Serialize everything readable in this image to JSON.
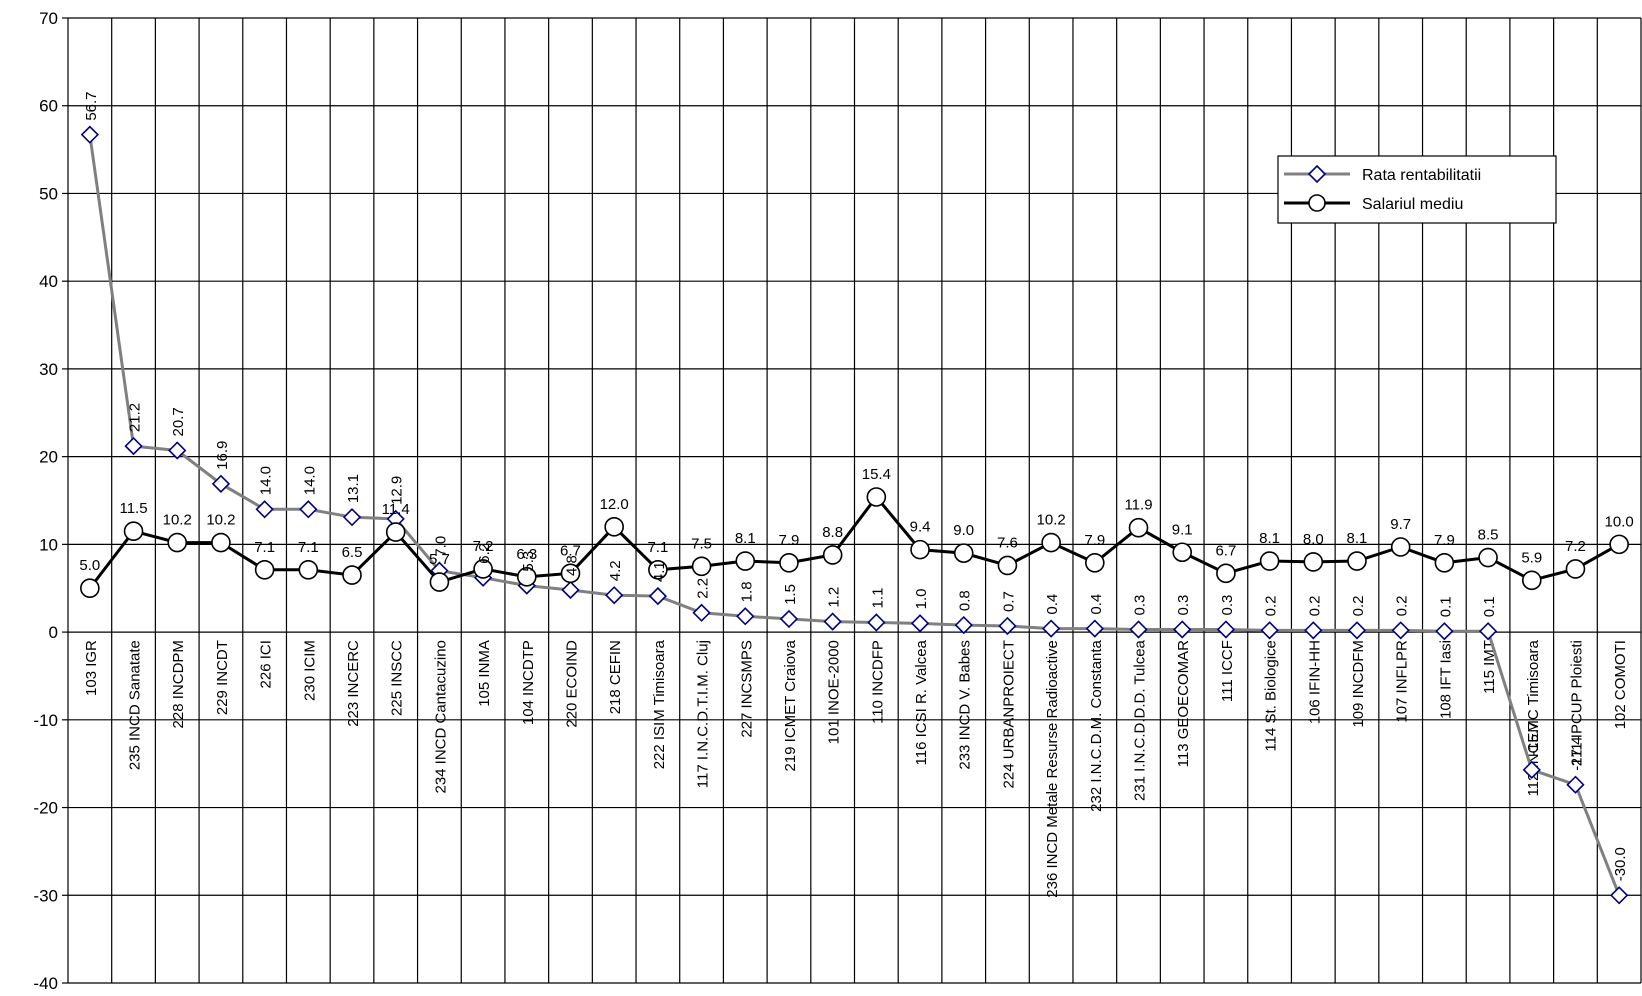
{
  "chart_data": {
    "type": "line",
    "ylim": [
      -40,
      70
    ],
    "y_ticks": [
      70,
      60,
      50,
      40,
      30,
      20,
      10,
      0,
      -10,
      -20,
      -30,
      -40
    ],
    "grid": true,
    "legend": "top-right",
    "categories": [
      "103 IGR",
      "235 INCD Sanatate",
      "228 INCDPM",
      "229 INCDT",
      "226 ICI",
      "230 ICIM",
      "223 INCERC",
      "225 INSCC",
      "234 INCD Cantacuzino",
      "105 INMA",
      "104 INCDTP",
      "220 ECOIND",
      "218 CEFIN",
      "222 ISIM Timisoara",
      "117 I.N.C.D.T.I.M. Cluj",
      "227 INCSMPS",
      "219 ICMET Craiova",
      "101 INOE-2000",
      "110 INCDFP",
      "116 ICSI R. Valcea",
      "233 INCD V. Babes",
      "224 URBANPROIECT",
      "236 INCD Metale Resurse Radioactive",
      "232 I.N.C.D.M. Constanta",
      "231 I.N.C.D.D.D. Tulcea",
      "113 GEOECOMAR",
      "111 ICCF",
      "114 St. Biologice",
      "106 IFIN-HH",
      "109 INCDFM",
      "107 INFLPR",
      "108 IFT Iasi",
      "115 IMT",
      "112 INCEMC Timisoara",
      "211 IPCUP Ploiesti",
      "102 COMOTI"
    ],
    "series": [
      {
        "name": "Rata rentabilitatii",
        "color": "#808080",
        "marker": "diamond",
        "marker_color": "#000080",
        "values": [
          56.7,
          21.2,
          20.7,
          16.9,
          14.0,
          14.0,
          13.1,
          12.9,
          7.0,
          6.2,
          5.3,
          4.8,
          4.2,
          4.1,
          2.2,
          1.8,
          1.5,
          1.2,
          1.1,
          1.0,
          0.8,
          0.7,
          0.4,
          0.4,
          0.3,
          0.3,
          0.3,
          0.2,
          0.2,
          0.2,
          0.2,
          0.1,
          0.1,
          -15.7,
          -17.4,
          -30.0
        ],
        "labels": [
          "56.7",
          "21.2",
          "20.7",
          "16.9",
          "14.0",
          "14.0",
          "13.1",
          "12.9",
          "7.0",
          "6.2",
          "5.3",
          "4.8",
          "4.2",
          "4.1",
          "2.2",
          "1.8",
          "1.5",
          "1.2",
          "1.1",
          "1.0",
          "0.8",
          "0.7",
          "0.4",
          "0.4",
          "0.3",
          "0.3",
          "0.3",
          "0.2",
          "0.2",
          "0.2",
          "0.2",
          "0.1",
          "0.1",
          "-15.7",
          "-17.4",
          "-30.0"
        ]
      },
      {
        "name": "Salariul mediu",
        "color": "#000000",
        "marker": "circle",
        "marker_color": "#000000",
        "values": [
          5.0,
          11.5,
          10.2,
          10.2,
          7.1,
          7.1,
          6.5,
          11.4,
          5.7,
          7.2,
          6.3,
          6.7,
          12.0,
          7.1,
          7.5,
          8.1,
          7.9,
          8.8,
          15.4,
          9.4,
          9.0,
          7.6,
          10.2,
          7.9,
          11.9,
          9.1,
          6.7,
          8.1,
          8.0,
          8.1,
          9.7,
          7.9,
          8.5,
          5.9,
          7.2,
          10.0
        ],
        "labels": [
          "5.0",
          "11.5",
          "10.2",
          "10.2",
          "7.1",
          "7.1",
          "6.5",
          "11.4",
          "5.7",
          "7.2",
          "6.3",
          "6.7",
          "12.0",
          "7.1",
          "7.5",
          "8.1",
          "7.9",
          "8.8",
          "15.4",
          "9.4",
          "9.0",
          "7.6",
          "10.2",
          "7.9",
          "11.9",
          "9.1",
          "6.7",
          "8.1",
          "8.0",
          "8.1",
          "9.7",
          "7.9",
          "8.5",
          "5.9",
          "7.2",
          "10.0"
        ]
      }
    ]
  }
}
